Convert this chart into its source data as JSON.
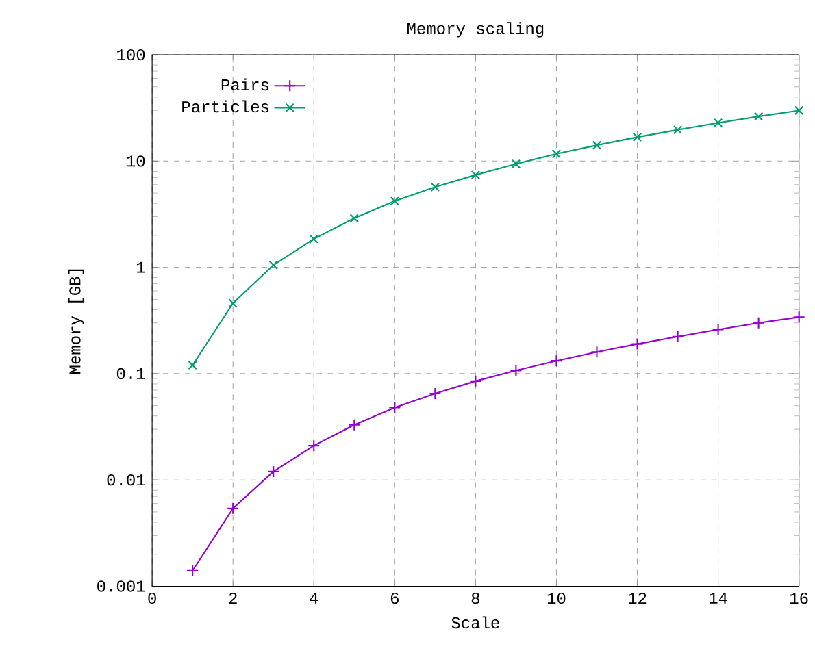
{
  "chart_data": {
    "type": "line",
    "title": "Memory scaling",
    "xlabel": "Scale",
    "ylabel": "Memory [GB]",
    "log": "y",
    "grid": true,
    "legend": "top left",
    "line_style": "solid",
    "xlim": [
      0,
      16
    ],
    "xticks": [
      0,
      2,
      4,
      6,
      8,
      10,
      12,
      14,
      16
    ],
    "ylim": [
      0.001,
      100
    ],
    "yticks": [
      0.001,
      0.01,
      0.1,
      1,
      10,
      100
    ],
    "x": [
      1,
      2,
      3,
      4,
      5,
      6,
      7,
      8,
      9,
      10,
      11,
      12,
      13,
      14,
      15,
      16
    ],
    "series": [
      {
        "name": "Pairs",
        "color": "#9400d3",
        "marker": "plus",
        "values": [
          0.0014,
          0.0054,
          0.012,
          0.021,
          0.033,
          0.048,
          0.065,
          0.085,
          0.107,
          0.132,
          0.16,
          0.19,
          0.223,
          0.26,
          0.3,
          0.34
        ]
      },
      {
        "name": "Particles",
        "color": "#009e73",
        "marker": "cross",
        "values": [
          0.12,
          0.46,
          1.05,
          1.85,
          2.9,
          4.2,
          5.7,
          7.4,
          9.4,
          11.7,
          14.1,
          16.8,
          19.7,
          22.9,
          26.3,
          29.9
        ]
      }
    ]
  }
}
